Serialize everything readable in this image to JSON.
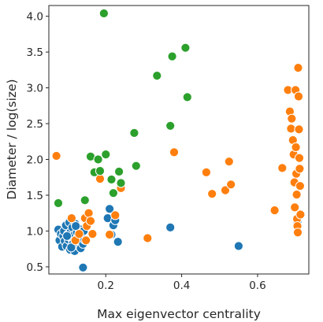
{
  "chart_data": {
    "type": "scatter",
    "title": "",
    "xlabel": "Max eigenvector centrality",
    "ylabel": "Diameter / log(size)",
    "xlim": [
      0.05,
      0.735
    ],
    "ylim": [
      0.4,
      4.15
    ],
    "xticks": [
      0.2,
      0.4,
      0.6
    ],
    "xtick_labels": [
      "0.2",
      "0.4",
      "0.6"
    ],
    "yticks": [
      0.5,
      1.0,
      1.5,
      2.0,
      2.5,
      3.0,
      3.5,
      4.0
    ],
    "ytick_labels": [
      "0.5",
      "1.0",
      "1.5",
      "2.0",
      "2.5",
      "3.0",
      "3.5",
      "4.0"
    ],
    "grid": false,
    "legend": false,
    "series": [
      {
        "color": "#1f77b4",
        "points": [
          [
            0.075,
            1.02
          ],
          [
            0.078,
            0.87
          ],
          [
            0.082,
            0.96
          ],
          [
            0.085,
            0.78
          ],
          [
            0.088,
            0.93
          ],
          [
            0.09,
            1.0
          ],
          [
            0.092,
            0.86
          ],
          [
            0.095,
            1.08
          ],
          [
            0.097,
            0.79
          ],
          [
            0.1,
            0.95
          ],
          [
            0.102,
            0.88
          ],
          [
            0.104,
            1.12
          ],
          [
            0.106,
            0.74
          ],
          [
            0.108,
            0.99
          ],
          [
            0.11,
            0.9
          ],
          [
            0.112,
            1.05
          ],
          [
            0.114,
            0.84
          ],
          [
            0.116,
            0.94
          ],
          [
            0.118,
            0.72
          ],
          [
            0.12,
            1.1
          ],
          [
            0.122,
            0.88
          ],
          [
            0.124,
            0.98
          ],
          [
            0.126,
            0.8
          ],
          [
            0.128,
            0.92
          ],
          [
            0.13,
            1.03
          ],
          [
            0.132,
            0.86
          ],
          [
            0.134,
            0.76
          ],
          [
            0.136,
            0.96
          ],
          [
            0.138,
            0.9
          ],
          [
            0.14,
            0.82
          ],
          [
            0.142,
            1.0
          ],
          [
            0.144,
            0.88
          ],
          [
            0.098,
            0.93
          ],
          [
            0.113,
            0.82
          ],
          [
            0.121,
            1.07
          ],
          [
            0.109,
            0.77
          ],
          [
            0.14,
            0.49
          ],
          [
            0.205,
            1.18
          ],
          [
            0.21,
            1.31
          ],
          [
            0.215,
            0.95
          ],
          [
            0.22,
            1.08
          ],
          [
            0.225,
            1.15
          ],
          [
            0.232,
            0.85
          ],
          [
            0.37,
            1.05
          ],
          [
            0.55,
            0.79
          ],
          [
            0.705,
            1.13
          ]
        ]
      },
      {
        "color": "#ff7f0e",
        "points": [
          [
            0.07,
            2.05
          ],
          [
            0.11,
            1.18
          ],
          [
            0.12,
            0.87
          ],
          [
            0.13,
            0.96
          ],
          [
            0.145,
            1.18
          ],
          [
            0.148,
            0.87
          ],
          [
            0.15,
            1.07
          ],
          [
            0.155,
            1.25
          ],
          [
            0.16,
            1.14
          ],
          [
            0.165,
            0.96
          ],
          [
            0.185,
            1.73
          ],
          [
            0.21,
            0.95
          ],
          [
            0.225,
            1.22
          ],
          [
            0.24,
            1.6
          ],
          [
            0.31,
            0.9
          ],
          [
            0.38,
            2.1
          ],
          [
            0.465,
            1.82
          ],
          [
            0.48,
            1.52
          ],
          [
            0.515,
            1.57
          ],
          [
            0.525,
            1.97
          ],
          [
            0.53,
            1.65
          ],
          [
            0.645,
            1.29
          ],
          [
            0.665,
            1.88
          ],
          [
            0.68,
            2.97
          ],
          [
            0.685,
            2.67
          ],
          [
            0.688,
            2.43
          ],
          [
            0.69,
            2.57
          ],
          [
            0.693,
            2.27
          ],
          [
            0.695,
            2.07
          ],
          [
            0.697,
            1.68
          ],
          [
            0.698,
            1.33
          ],
          [
            0.7,
            2.97
          ],
          [
            0.701,
            2.17
          ],
          [
            0.702,
            1.8
          ],
          [
            0.703,
            1.51
          ],
          [
            0.704,
            1.17
          ],
          [
            0.705,
            1.07
          ],
          [
            0.706,
            0.98
          ],
          [
            0.707,
            3.28
          ],
          [
            0.708,
            2.88
          ],
          [
            0.709,
            2.42
          ],
          [
            0.71,
            2.02
          ],
          [
            0.711,
            1.87
          ],
          [
            0.712,
            1.63
          ],
          [
            0.713,
            1.23
          ]
        ]
      },
      {
        "color": "#2ca02c",
        "points": [
          [
            0.075,
            1.39
          ],
          [
            0.145,
            1.43
          ],
          [
            0.16,
            2.04
          ],
          [
            0.17,
            1.82
          ],
          [
            0.18,
            2.0
          ],
          [
            0.185,
            1.84
          ],
          [
            0.195,
            4.04
          ],
          [
            0.2,
            2.07
          ],
          [
            0.215,
            1.72
          ],
          [
            0.22,
            1.53
          ],
          [
            0.235,
            1.83
          ],
          [
            0.24,
            1.67
          ],
          [
            0.275,
            2.37
          ],
          [
            0.28,
            1.91
          ],
          [
            0.335,
            3.17
          ],
          [
            0.37,
            2.47
          ],
          [
            0.375,
            3.44
          ],
          [
            0.41,
            3.56
          ],
          [
            0.415,
            2.87
          ]
        ]
      }
    ]
  }
}
